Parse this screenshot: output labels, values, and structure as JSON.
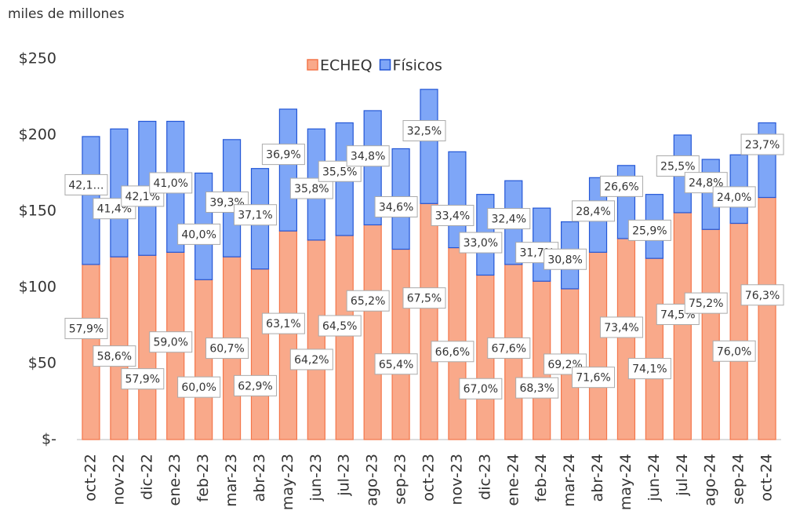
{
  "chart_data": {
    "type": "stacked_bar",
    "title": "miles de millones",
    "categories": [
      "oct-22",
      "nov-22",
      "dic-22",
      "ene-23",
      "feb-23",
      "mar-23",
      "abr-23",
      "may-23",
      "jun-23",
      "jul-23",
      "ago-23",
      "sep-23",
      "oct-23",
      "nov-23",
      "dic-23",
      "ene-24",
      "feb-24",
      "mar-24",
      "abr-24",
      "may-24",
      "jun-24",
      "jul-24",
      "ago-24",
      "sep-24",
      "oct-24"
    ],
    "series": [
      {
        "name": "ECHEQ",
        "color": "#f9a98a",
        "edge": "#f4764a",
        "values": [
          115,
          120,
          121,
          123,
          105,
          120,
          112,
          137,
          131,
          134,
          141,
          125,
          155,
          126,
          108,
          115,
          104,
          99,
          123,
          132,
          119,
          149,
          138,
          142,
          159
        ],
        "percent_labels": [
          "57,9%",
          "58,6%",
          "57,9%",
          "59,0%",
          "60,0%",
          "60,7%",
          "62,9%",
          "63,1%",
          "64,2%",
          "64,5%",
          "65,2%",
          "65,4%",
          "67,5%",
          "66,6%",
          "67,0%",
          "67,6%",
          "68,3%",
          "69,2%",
          "71,6%",
          "73,4%",
          "74,1%",
          "74,5%",
          "75,2%",
          "76,0%",
          "76,3%"
        ]
      },
      {
        "name": "Físicos",
        "color": "#7ea6f7",
        "edge": "#2457d6",
        "values": [
          84,
          84,
          88,
          86,
          70,
          77,
          66,
          80,
          73,
          74,
          75,
          66,
          75,
          63,
          53,
          55,
          48,
          44,
          49,
          48,
          42,
          51,
          46,
          45,
          49
        ],
        "percent_labels": [
          "42,1…",
          "41,4%",
          "42,1%",
          "41,0%",
          "40,0%",
          "39,3%",
          "37,1%",
          "36,9%",
          "35,8%",
          "35,5%",
          "34,8%",
          "34,6%",
          "32,5%",
          "33,4%",
          "33,0%",
          "32,4%",
          "31,7%",
          "30,8%",
          "28,4%",
          "26,6%",
          "25,9%",
          "25,5%",
          "24,8%",
          "24,0%",
          "23,7%"
        ]
      }
    ],
    "ylim": [
      0,
      250
    ],
    "yticks": [
      {
        "value": 0,
        "label": "$-"
      },
      {
        "value": 50,
        "label": "$50"
      },
      {
        "value": 100,
        "label": "$100"
      },
      {
        "value": 150,
        "label": "$150"
      },
      {
        "value": 200,
        "label": "$200"
      },
      {
        "value": 250,
        "label": "$250"
      }
    ],
    "grid": false,
    "legend": "top"
  }
}
